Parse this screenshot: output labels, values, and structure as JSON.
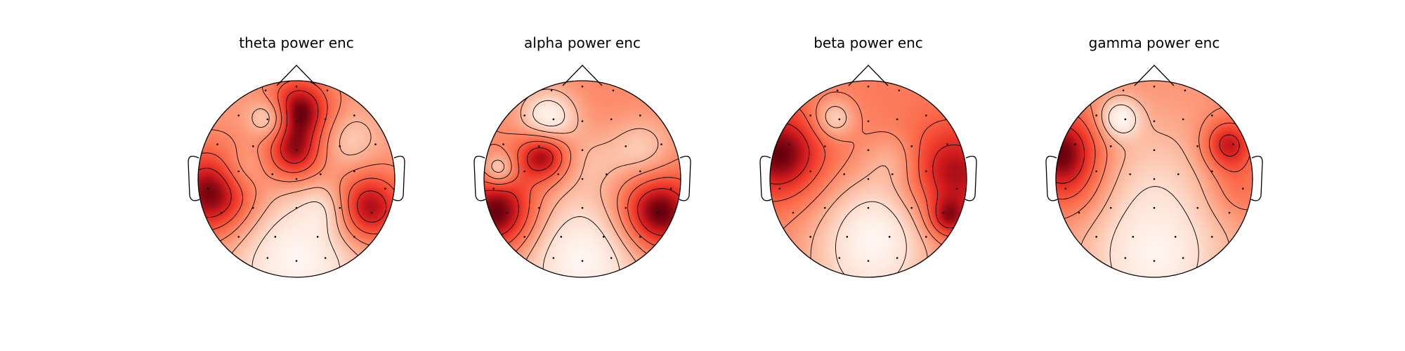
{
  "chart_data": [
    {
      "type": "heatmap",
      "subtype": "scalp-topomap",
      "title": "theta power enc",
      "colormap": "Reds",
      "blobs": [
        {
          "x": -0.28,
          "y": 0.62,
          "v": -0.6,
          "s": 0.1
        },
        {
          "x": 0.02,
          "y": 0.7,
          "v": 0.95,
          "s": 0.16
        },
        {
          "x": -0.02,
          "y": 0.25,
          "v": 0.75,
          "s": 0.14
        },
        {
          "x": -0.85,
          "y": -0.15,
          "v": 1.0,
          "s": 0.22
        },
        {
          "x": 0.72,
          "y": -0.3,
          "v": 0.95,
          "s": 0.18
        },
        {
          "x": -0.55,
          "y": 0.1,
          "v": -0.3,
          "s": 0.12
        },
        {
          "x": 0.55,
          "y": 0.4,
          "v": -0.3,
          "s": 0.14
        },
        {
          "x": 0.0,
          "y": -0.8,
          "v": -0.7,
          "s": 0.35
        },
        {
          "x": 0.3,
          "y": -0.3,
          "v": -0.3,
          "s": 0.12
        }
      ],
      "base": 0.45
    },
    {
      "type": "heatmap",
      "subtype": "scalp-topomap",
      "title": "alpha power enc",
      "colormap": "Reds",
      "blobs": [
        {
          "x": -0.35,
          "y": 0.62,
          "v": -0.8,
          "s": 0.14
        },
        {
          "x": -0.4,
          "y": 0.25,
          "v": 0.85,
          "s": 0.13
        },
        {
          "x": -0.85,
          "y": -0.35,
          "v": 0.95,
          "s": 0.2
        },
        {
          "x": 0.75,
          "y": -0.35,
          "v": 1.0,
          "s": 0.2
        },
        {
          "x": -0.85,
          "y": 0.1,
          "v": -0.6,
          "s": 0.08
        },
        {
          "x": 0.6,
          "y": 0.3,
          "v": -0.4,
          "s": 0.16
        },
        {
          "x": 0.0,
          "y": -0.8,
          "v": -0.8,
          "s": 0.35
        },
        {
          "x": 0.1,
          "y": 0.2,
          "v": -0.2,
          "s": 0.15
        }
      ],
      "base": 0.25
    },
    {
      "type": "heatmap",
      "subtype": "scalp-topomap",
      "title": "beta power enc",
      "colormap": "Reds",
      "blobs": [
        {
          "x": -0.9,
          "y": 0.25,
          "v": 1.0,
          "s": 0.22
        },
        {
          "x": 0.85,
          "y": 0.05,
          "v": 0.85,
          "s": 0.25
        },
        {
          "x": -0.35,
          "y": 0.62,
          "v": -0.7,
          "s": 0.1
        },
        {
          "x": 0.25,
          "y": 0.2,
          "v": -0.35,
          "s": 0.14
        },
        {
          "x": 0.1,
          "y": -0.4,
          "v": -0.5,
          "s": 0.25
        },
        {
          "x": 0.0,
          "y": -0.85,
          "v": -0.8,
          "s": 0.35
        },
        {
          "x": 0.8,
          "y": -0.4,
          "v": 0.7,
          "s": 0.1
        }
      ],
      "base": 0.3
    },
    {
      "type": "heatmap",
      "subtype": "scalp-topomap",
      "title": "gamma power enc",
      "colormap": "Reds",
      "blobs": [
        {
          "x": -0.95,
          "y": 0.3,
          "v": 1.0,
          "s": 0.2
        },
        {
          "x": 0.75,
          "y": 0.35,
          "v": 0.85,
          "s": 0.13
        },
        {
          "x": -0.85,
          "y": -0.1,
          "v": 0.3,
          "s": 0.18
        },
        {
          "x": 0.85,
          "y": -0.1,
          "v": 0.3,
          "s": 0.15
        },
        {
          "x": -0.35,
          "y": 0.62,
          "v": -0.8,
          "s": 0.1
        },
        {
          "x": 0.0,
          "y": -0.8,
          "v": -0.8,
          "s": 0.35
        },
        {
          "x": 0.0,
          "y": 0.1,
          "v": -0.3,
          "s": 0.3
        }
      ],
      "base": 0.1
    }
  ],
  "sensors": [
    [
      -0.32,
      0.92
    ],
    [
      0.0,
      0.96
    ],
    [
      0.32,
      0.92
    ],
    [
      -0.6,
      0.66
    ],
    [
      -0.3,
      0.62
    ],
    [
      0.0,
      0.6
    ],
    [
      0.3,
      0.62
    ],
    [
      0.6,
      0.66
    ],
    [
      -0.82,
      0.36
    ],
    [
      -0.45,
      0.34
    ],
    [
      0.0,
      0.3
    ],
    [
      0.45,
      0.34
    ],
    [
      0.82,
      0.36
    ],
    [
      -0.6,
      0.08
    ],
    [
      -0.25,
      0.05
    ],
    [
      0.0,
      0.0
    ],
    [
      0.25,
      0.05
    ],
    [
      0.6,
      0.08
    ],
    [
      -0.92,
      -0.1
    ],
    [
      0.92,
      -0.1
    ],
    [
      -0.78,
      -0.35
    ],
    [
      -0.45,
      -0.3
    ],
    [
      0.0,
      -0.3
    ],
    [
      0.45,
      -0.3
    ],
    [
      0.78,
      -0.35
    ],
    [
      -0.6,
      -0.6
    ],
    [
      -0.22,
      -0.6
    ],
    [
      0.22,
      -0.6
    ],
    [
      0.6,
      -0.6
    ],
    [
      -0.3,
      -0.82
    ],
    [
      0.0,
      -0.85
    ],
    [
      0.3,
      -0.82
    ]
  ]
}
